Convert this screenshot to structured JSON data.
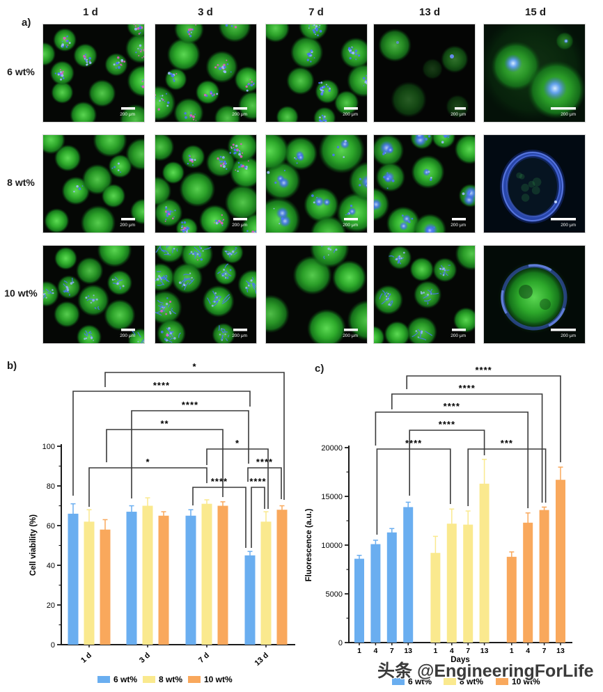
{
  "watermark": "头条 @EngineeringForLife",
  "panel_a": {
    "label": "a)",
    "column_headers": [
      "1 d",
      "3 d",
      "7 d",
      "13 d",
      "15 d"
    ],
    "row_labels": [
      "6 wt%",
      "8 wt%",
      "10 wt%"
    ],
    "scale_bar_label": "200 μm",
    "tiles": [
      {
        "row": "6 wt%",
        "col": "1 d",
        "style": "magenta-blue",
        "spheres": 12
      },
      {
        "row": "6 wt%",
        "col": "3 d",
        "style": "magenta-blue",
        "spheres": 11
      },
      {
        "row": "6 wt%",
        "col": "7 d",
        "style": "blue",
        "spheres": 10
      },
      {
        "row": "6 wt%",
        "col": "13 d",
        "style": "dim",
        "spheres": 5
      },
      {
        "row": "6 wt%",
        "col": "15 d",
        "style": "green-blue-blobs",
        "spheres": 2
      },
      {
        "row": "8 wt%",
        "col": "1 d",
        "style": "plain",
        "spheres": 11
      },
      {
        "row": "8 wt%",
        "col": "3 d",
        "style": "magenta-blue",
        "spheres": 13
      },
      {
        "row": "8 wt%",
        "col": "7 d",
        "style": "blue-blob",
        "spheres": 9,
        "large": true
      },
      {
        "row": "8 wt%",
        "col": "13 d",
        "style": "blue-blob",
        "spheres": 10
      },
      {
        "row": "8 wt%",
        "col": "15 d",
        "style": "blue-ring",
        "spheres": 1
      },
      {
        "row": "10 wt%",
        "col": "1 d",
        "style": "blue-web",
        "spheres": 11
      },
      {
        "row": "10 wt%",
        "col": "3 d",
        "style": "blue-web-heavy",
        "spheres": 11
      },
      {
        "row": "10 wt%",
        "col": "7 d",
        "style": "blue-web",
        "spheres": 6,
        "large": true
      },
      {
        "row": "10 wt%",
        "col": "13 d",
        "style": "blue-web",
        "spheres": 10
      },
      {
        "row": "10 wt%",
        "col": "15 d",
        "style": "green-sphere-blue-rim",
        "spheres": 1
      }
    ]
  },
  "panel_b": {
    "label": "b)"
  },
  "panel_c": {
    "label": "c)"
  },
  "colors": {
    "series": [
      {
        "name": "6 wt%",
        "hex": "#6aaef0"
      },
      {
        "name": "8 wt%",
        "hex": "#fae98e"
      },
      {
        "name": "10 wt%",
        "hex": "#f9a85c"
      }
    ],
    "axis": "#1a1a1a",
    "bracket": "#3a3a3a",
    "micro": {
      "green_hi": "#5ede55",
      "green": "#2fae2c",
      "green_edge": "#0b4510",
      "blue": "#4a74f5",
      "blue_hi": "#9db8ff",
      "magenta": "#e05ac8",
      "tile_bg": "#050705"
    }
  },
  "significance_symbols": [
    "*",
    "**",
    "***",
    "****"
  ],
  "chart_data": [
    {
      "id": "cell_viability",
      "panel": "b",
      "type": "bar",
      "ylabel": "Cell viability (%)",
      "xlabel": "",
      "ylim": [
        0,
        100
      ],
      "yticks": [
        0,
        20,
        40,
        60,
        80,
        100
      ],
      "minor_tick_step": 10,
      "grid": false,
      "legend_position": "bottom",
      "categories": [
        "1 d",
        "3 d",
        "7 d",
        "13 d"
      ],
      "series": [
        {
          "name": "6 wt%",
          "values": [
            66,
            67,
            65,
            45
          ],
          "errors": [
            5,
            3,
            3,
            2
          ]
        },
        {
          "name": "8 wt%",
          "values": [
            62,
            70,
            71,
            62
          ],
          "errors": [
            6,
            4,
            2,
            5
          ]
        },
        {
          "name": "10 wt%",
          "values": [
            58,
            65,
            70,
            68
          ],
          "errors": [
            5,
            2,
            2,
            2
          ]
        }
      ],
      "legend": [
        "6 wt%",
        "8 wt%",
        "10 wt%"
      ],
      "annotations": [
        {
          "label": "*",
          "a": [
            2,
            0
          ],
          "b": [
            2,
            3
          ],
          "y": 535,
          "la": 556,
          "lb": 718,
          "dxb": 3
        },
        {
          "label": "****",
          "a": [
            0,
            0
          ],
          "b": [
            0,
            3
          ],
          "y": 562,
          "la": 712,
          "lb": 584
        },
        {
          "label": "****",
          "a": [
            0,
            1
          ],
          "b": [
            0,
            3
          ],
          "y": 590,
          "la": 716,
          "lb": 666,
          "dxb": -2
        },
        {
          "label": "**",
          "a": [
            2,
            0
          ],
          "b": [
            2,
            2
          ],
          "y": 617,
          "la": 664,
          "lb": 714,
          "dxa": 2
        },
        {
          "label": "*",
          "a": [
            1,
            2
          ],
          "b": [
            1,
            3
          ],
          "y": 645,
          "la": 668,
          "lb": 731,
          "dxb": 3
        },
        {
          "label": "*",
          "a": [
            1,
            0
          ],
          "b": [
            1,
            2
          ],
          "y": 672,
          "la": 728,
          "lb": 694
        },
        {
          "label": "****",
          "a": [
            0,
            3
          ],
          "b": [
            2,
            3
          ],
          "y": 672,
          "la": 692,
          "lb": 717,
          "dxa": -3,
          "dxb": -1
        },
        {
          "label": "****",
          "a": [
            0,
            2
          ],
          "b": [
            0,
            3
          ],
          "y": 700,
          "la": 726,
          "lb": 787,
          "dxa": 3,
          "dxb": -6
        },
        {
          "label": "****",
          "a": [
            0,
            3
          ],
          "b": [
            1,
            3
          ],
          "y": 700,
          "la": 787,
          "lb": 731,
          "dxa": 2,
          "dxb": -2
        }
      ]
    },
    {
      "id": "fluorescence",
      "panel": "c",
      "type": "bar",
      "ylabel": "Fluorescence (a.u.)",
      "xlabel": "Days",
      "ylim": [
        0,
        20000
      ],
      "yticks": [
        0,
        5000,
        10000,
        15000,
        20000
      ],
      "minor_tick_step": 2500,
      "grid": false,
      "legend_position": "bottom",
      "categories": [
        "1",
        "4",
        "7",
        "13"
      ],
      "series": [
        {
          "name": "6 wt%",
          "values": [
            8600,
            10100,
            11300,
            13900
          ],
          "errors": [
            350,
            400,
            400,
            500
          ]
        },
        {
          "name": "8 wt%",
          "values": [
            9200,
            12200,
            12100,
            16300
          ],
          "errors": [
            1700,
            1500,
            1400,
            2500
          ]
        },
        {
          "name": "10 wt%",
          "values": [
            8800,
            12300,
            13600,
            16700
          ],
          "errors": [
            500,
            1000,
            300,
            1300
          ]
        }
      ],
      "legend": [
        "6 wt%",
        "8 wt%",
        "10 wt%"
      ],
      "annotations": [
        {
          "label": "****",
          "a": [
            0,
            3
          ],
          "b": [
            2,
            3
          ],
          "y": 540,
          "la": 559,
          "lb": 664,
          "dxa": -2
        },
        {
          "label": "****",
          "a": [
            0,
            2
          ],
          "b": [
            2,
            2
          ],
          "y": 566,
          "la": 588,
          "lb": 722,
          "dxb": -3
        },
        {
          "label": "****",
          "a": [
            0,
            1
          ],
          "b": [
            2,
            1
          ],
          "y": 592,
          "la": 640,
          "lb": 730
        },
        {
          "label": "****",
          "a": [
            0,
            3
          ],
          "b": [
            1,
            3
          ],
          "y": 618,
          "la": 712,
          "lb": 654,
          "dxa": 2
        },
        {
          "label": "****",
          "a": [
            0,
            1
          ],
          "b": [
            1,
            1
          ],
          "y": 645,
          "la": 768,
          "lb": 724,
          "dxa": 2,
          "dxb": -2
        },
        {
          "label": "***",
          "a": [
            1,
            2
          ],
          "b": [
            2,
            2
          ],
          "y": 645,
          "la": 727,
          "lb": 722,
          "dxb": 2
        }
      ]
    }
  ]
}
